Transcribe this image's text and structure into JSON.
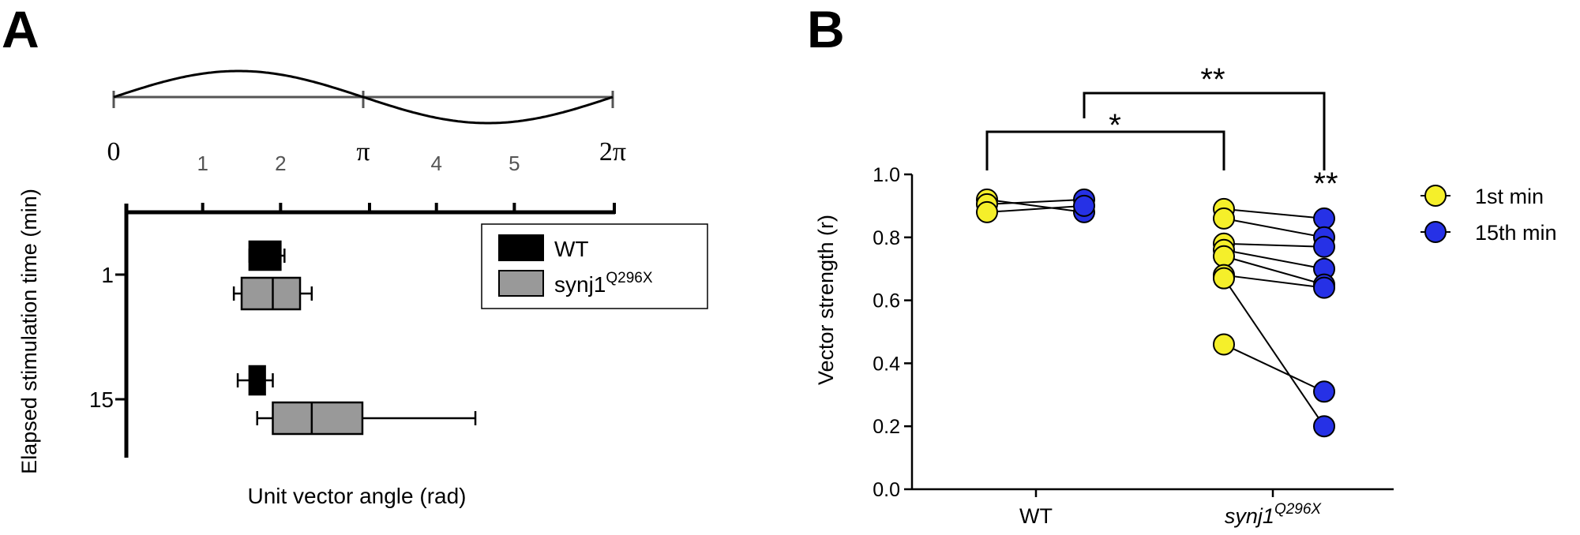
{
  "panel_a": {
    "label": "A",
    "phase_ticks": [
      "0",
      "1",
      "2",
      "π",
      "4",
      "5",
      "2π"
    ],
    "chart_data": {
      "type": "box",
      "orientation": "horizontal",
      "xlabel": "Unit vector angle (rad)",
      "ylabel": "Elapsed stimulation time (min)",
      "xlim": [
        0,
        6.2832
      ],
      "y_ticks": [
        "1",
        "15"
      ],
      "legend": {
        "position": "top-right"
      },
      "series": [
        {
          "name": "WT",
          "color": "#000000",
          "boxes": [
            {
              "time": "1",
              "whisker_low": 1.6,
              "q1": 1.6,
              "median": 1.85,
              "q3": 2.0,
              "whisker_high": 2.05
            },
            {
              "time": "15",
              "whisker_low": 1.45,
              "q1": 1.6,
              "median": 1.7,
              "q3": 1.8,
              "whisker_high": 1.9
            }
          ]
        },
        {
          "name": "synj1",
          "name_sup": "Q296X",
          "color": "#999999",
          "boxes": [
            {
              "time": "1",
              "whisker_low": 1.4,
              "q1": 1.5,
              "median": 1.9,
              "q3": 2.25,
              "whisker_high": 2.4
            },
            {
              "time": "15",
              "whisker_low": 1.7,
              "q1": 1.9,
              "median": 2.4,
              "q3": 3.05,
              "whisker_high": 4.5
            }
          ]
        }
      ]
    }
  },
  "panel_b": {
    "label": "B",
    "chart_data": {
      "type": "scatter",
      "ylabel": "Vector strength (r)",
      "ylim": [
        0,
        1.0
      ],
      "y_ticks": [
        "0.0",
        "0.2",
        "0.4",
        "0.6",
        "0.8",
        "1.0"
      ],
      "categories": [
        {
          "label": "WT",
          "italic": false
        },
        {
          "label": "synj1",
          "sup": "Q296X",
          "italic": true
        }
      ],
      "legend": {
        "position": "right"
      },
      "series": [
        {
          "name": "1st min",
          "color": "#f5ef2a"
        },
        {
          "name": "15th min",
          "color": "#2631e6"
        }
      ],
      "pairs": {
        "WT": [
          [
            0.92,
            0.88
          ],
          [
            0.905,
            0.92
          ],
          [
            0.88,
            0.9
          ]
        ],
        "synj1": [
          [
            0.89,
            0.86
          ],
          [
            0.86,
            0.8
          ],
          [
            0.78,
            0.77
          ],
          [
            0.76,
            0.7
          ],
          [
            0.74,
            0.65
          ],
          [
            0.68,
            0.64
          ],
          [
            0.46,
            0.31
          ],
          [
            0.67,
            0.2
          ]
        ]
      },
      "annotations": [
        {
          "text": "*",
          "between": [
            "WT",
            "synj1 1st min"
          ]
        },
        {
          "text": "**",
          "between": [
            "WT 15th min",
            "synj1 15th min"
          ]
        },
        {
          "text": "**",
          "at": "synj1 15th min"
        }
      ]
    }
  }
}
